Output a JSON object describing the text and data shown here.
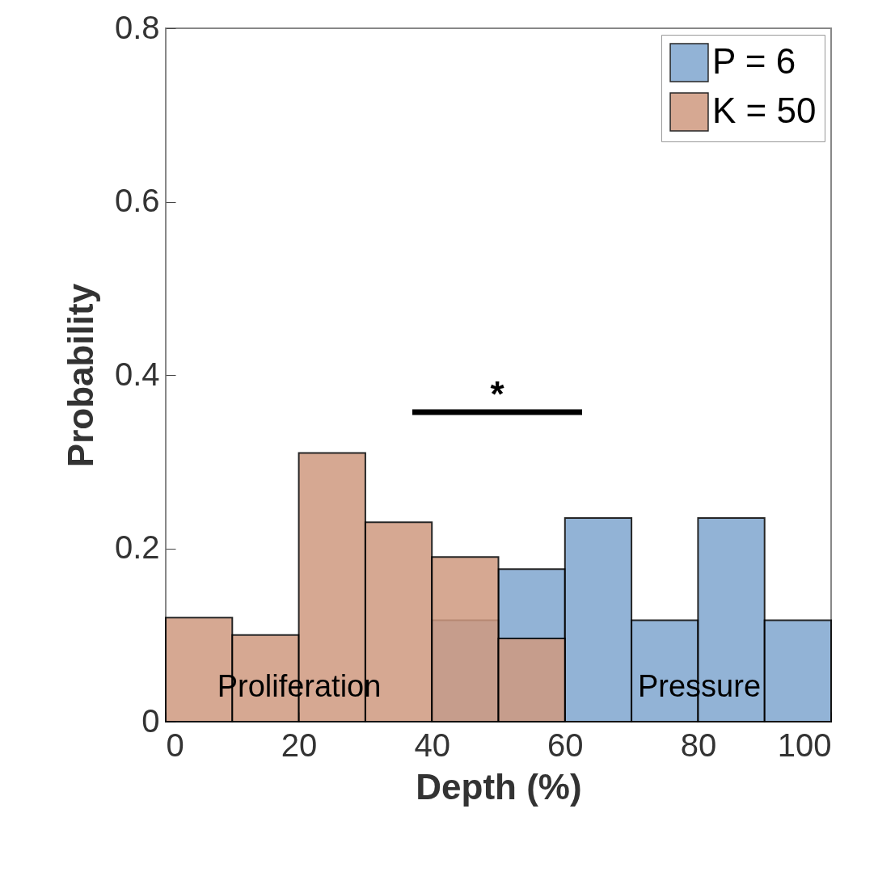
{
  "chart_data": {
    "type": "histogram",
    "xlabel": "Depth (%)",
    "ylabel": "Probability",
    "bins": [
      0,
      10,
      20,
      30,
      40,
      50,
      60,
      70,
      80,
      90,
      100
    ],
    "series": [
      {
        "name": "P = 6",
        "color": "#80a6cf",
        "values": [
          null,
          null,
          null,
          null,
          0.117,
          0.176,
          0.235,
          0.117,
          0.235,
          0.117
        ]
      },
      {
        "name": "K = 50",
        "color": "#d09a80",
        "values": [
          0.12,
          0.1,
          0.31,
          0.23,
          0.19,
          0.096,
          null,
          null,
          null,
          null
        ]
      }
    ],
    "xlim": [
      0,
      100
    ],
    "xticks": [
      0,
      20,
      40,
      60,
      80,
      100
    ],
    "ylim": [
      0,
      0.8
    ],
    "yticks": [
      0,
      0.2,
      0.4,
      0.6,
      0.8
    ],
    "legend": "top right",
    "grid": false,
    "annotations": [
      "*",
      "Proliferation",
      "Pressure"
    ]
  }
}
